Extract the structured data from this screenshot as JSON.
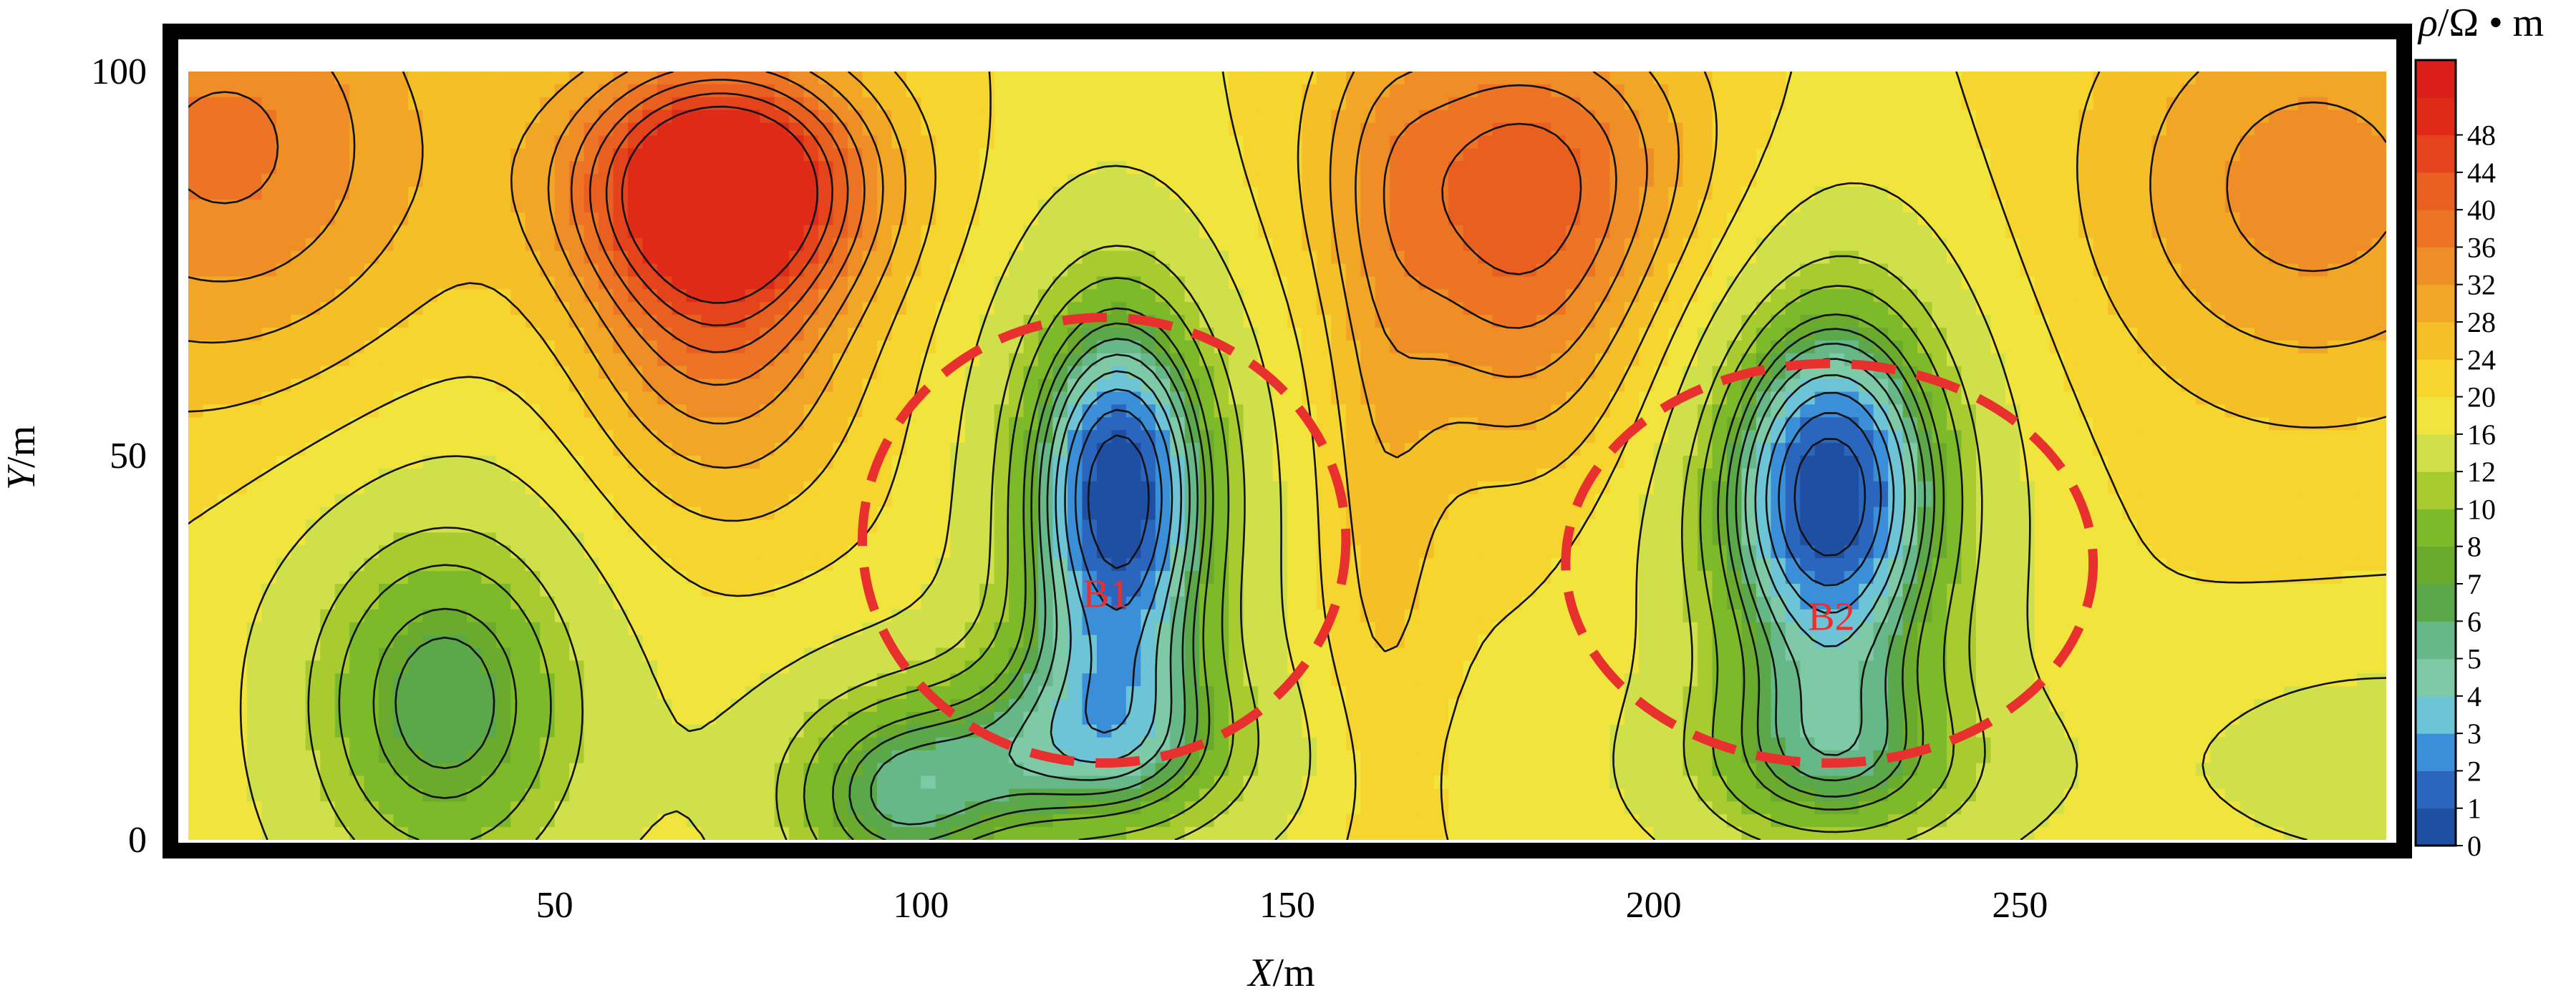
{
  "chart_data": {
    "type": "heatmap",
    "title": "",
    "xlabel_var": "X",
    "xlabel_unit": "/m",
    "ylabel_var": "Y",
    "ylabel_unit": "/m",
    "colorbar_label_var": "ρ",
    "colorbar_label_unit": "/Ω • m",
    "xlim": [
      0,
      300
    ],
    "ylim": [
      0,
      100
    ],
    "x_ticks": [
      50,
      100,
      150,
      200,
      250
    ],
    "y_ticks": [
      0,
      50,
      100
    ],
    "x_tick_labels": [
      "50",
      "100",
      "150",
      "200",
      "250"
    ],
    "y_tick_labels": [
      "0",
      "50",
      "100"
    ],
    "colorbar_levels": [
      0,
      1,
      2,
      3,
      4,
      5,
      6,
      7,
      8,
      10,
      12,
      16,
      20,
      24,
      28,
      32,
      36,
      40,
      44,
      48
    ],
    "colorbar_labels": [
      "0",
      "1",
      "2",
      "3",
      "4",
      "5",
      "6",
      "7",
      "8",
      "10",
      "12",
      "16",
      "20",
      "24",
      "28",
      "32",
      "36",
      "40",
      "44",
      "48"
    ],
    "colorbar_colors": [
      "#1f4fa3",
      "#2a66bd",
      "#3b8fd8",
      "#6cc4d6",
      "#7fcaa6",
      "#66b889",
      "#5aa84a",
      "#6aaa2c",
      "#7dba2a",
      "#a8cc30",
      "#cfe04a",
      "#f1e53d",
      "#f6d52e",
      "#f5bf27",
      "#f2a625",
      "#ef8d26",
      "#ec7424",
      "#e85f20",
      "#e5431c",
      "#e02a18",
      "#da1f1b"
    ],
    "anomalies": [
      {
        "label": "B1",
        "center": [
          125,
          39
        ],
        "radius": [
          33,
          29
        ],
        "color": "#e8302f"
      },
      {
        "label": "B2",
        "center": [
          224,
          36
        ],
        "radius": [
          36,
          26
        ],
        "color": "#e8302f"
      }
    ]
  }
}
